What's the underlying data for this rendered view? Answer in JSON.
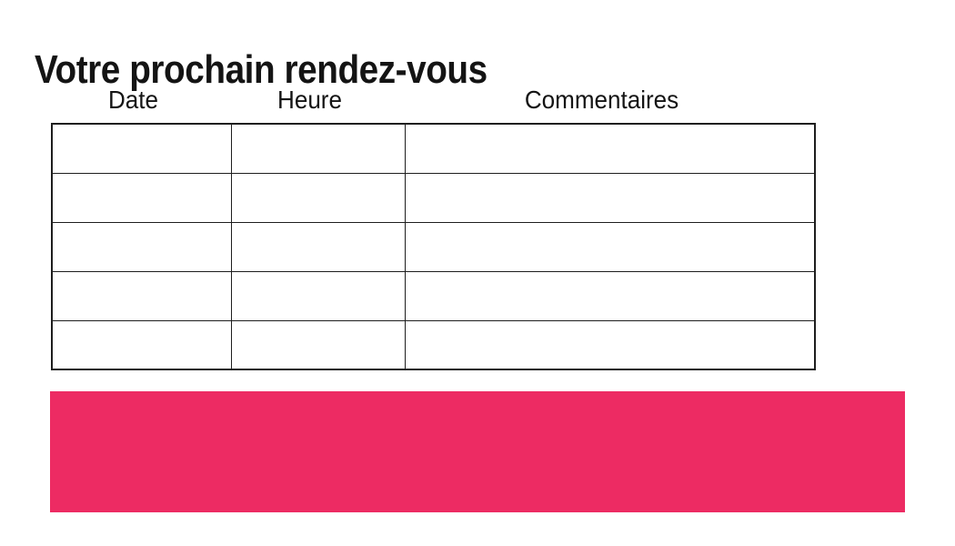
{
  "page": {
    "title": "Votre prochain rendez-vous"
  },
  "table": {
    "headers": [
      {
        "label": "Date"
      },
      {
        "label": "Heure"
      },
      {
        "label": "Commentaires"
      }
    ],
    "row_count": 5,
    "rows": [
      [
        "",
        "",
        ""
      ],
      [
        "",
        "",
        ""
      ],
      [
        "",
        "",
        ""
      ],
      [
        "",
        "",
        ""
      ],
      [
        "",
        "",
        ""
      ]
    ]
  },
  "colors": {
    "accent_pink": "#ED2B63",
    "table_border": "#1E1E1E",
    "text": "#141414",
    "background": "#FFFFFF"
  }
}
